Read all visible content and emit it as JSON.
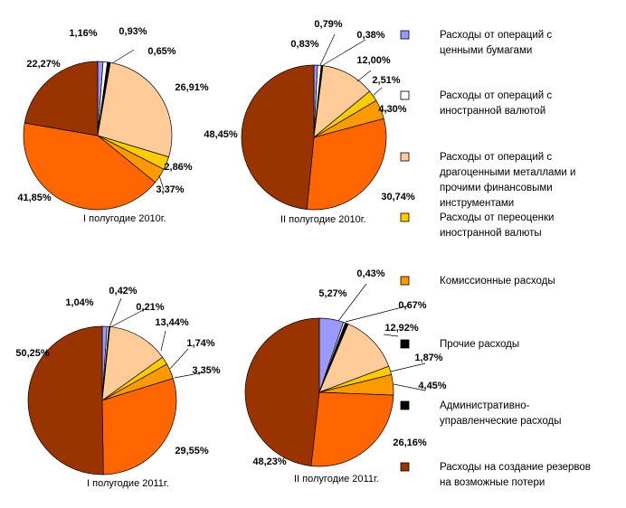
{
  "chart_data": {
    "type": "pie",
    "legend_position": "right",
    "legend": [
      {
        "lines": [
          "Расходы от операций с",
          "ценными бумагами"
        ],
        "color": "#9999ff"
      },
      {
        "lines": [
          "Расходы от операций с",
          "иностранной валютой"
        ],
        "color": "#ffffff"
      },
      {
        "lines": [
          "Расходы от операций с",
          "драгоценными металлами и",
          "прочими финансовыми",
          "инструментами"
        ],
        "color": "#ffcc99"
      },
      {
        "lines": [
          "Расходы от переоценки",
          "иностранной валюты"
        ],
        "color": "#ffcc00"
      },
      {
        "lines": [
          "Комиссионные расходы"
        ],
        "color": "#ff9900"
      },
      {
        "lines": [
          "Прочие расходы"
        ],
        "color": "#000000"
      },
      {
        "lines": [
          "Административно-",
          "управленческие расходы"
        ],
        "color": "#000000"
      },
      {
        "lines": [
          "Расходы на создание резервов",
          "на возможные потери"
        ],
        "color": "#993300"
      }
    ],
    "charts": [
      {
        "title": "I полугодие  2010г.",
        "slices": [
          {
            "value": 1.16,
            "label": "1,16%",
            "color": "#9999ff"
          },
          {
            "value": 0.93,
            "label": "0,93%",
            "color": "#ffffff"
          },
          {
            "value": 0.65,
            "label": "0,65%",
            "color": "#000000"
          },
          {
            "value": 26.91,
            "label": "26,91%",
            "color": "#ffcc99"
          },
          {
            "value": 2.86,
            "label": "2,86%",
            "color": "#ffcc00"
          },
          {
            "value": 3.37,
            "label": "3,37%",
            "color": "#ff9900"
          },
          {
            "value": 41.85,
            "label": "41,85%",
            "color": "#ff6600"
          },
          {
            "value": 22.27,
            "label": "22,27%",
            "color": "#993300"
          }
        ]
      },
      {
        "title": "II полугодие  2010г.",
        "slices": [
          {
            "value": 0.83,
            "label": "0,83%",
            "color": "#9999ff"
          },
          {
            "value": 0.79,
            "label": "0,79%",
            "color": "#ffffff"
          },
          {
            "value": 0.38,
            "label": "0,38%",
            "color": "#000000"
          },
          {
            "value": 12.0,
            "label": "12,00%",
            "color": "#ffcc99"
          },
          {
            "value": 2.51,
            "label": "2,51%",
            "color": "#ffcc00"
          },
          {
            "value": 4.3,
            "label": "4,30%",
            "color": "#ff9900"
          },
          {
            "value": 30.74,
            "label": "30,74%",
            "color": "#ff6600"
          },
          {
            "value": 48.45,
            "label": "48,45%",
            "color": "#993300"
          }
        ]
      },
      {
        "title": "I полугодие  2011г.",
        "slices": [
          {
            "value": 1.04,
            "label": "1,04%",
            "color": "#9999ff"
          },
          {
            "value": 0.42,
            "label": "0,42%",
            "color": "#ffffff"
          },
          {
            "value": 0.21,
            "label": "0,21%",
            "color": "#000000"
          },
          {
            "value": 13.44,
            "label": "13,44%",
            "color": "#ffcc99"
          },
          {
            "value": 1.74,
            "label": "1,74%",
            "color": "#ffcc00"
          },
          {
            "value": 3.35,
            "label": "3,35%",
            "color": "#ff9900"
          },
          {
            "value": 29.55,
            "label": "29,55%",
            "color": "#ff6600"
          },
          {
            "value": 50.25,
            "label": "50,25%",
            "color": "#993300"
          }
        ]
      },
      {
        "title": "II полугодие  2011г.",
        "slices": [
          {
            "value": 5.27,
            "label": "5,27%",
            "color": "#9999ff"
          },
          {
            "value": 0.43,
            "label": "0,43%",
            "color": "#ffffff"
          },
          {
            "value": 0.67,
            "label": "0,67%",
            "color": "#000000"
          },
          {
            "value": 12.92,
            "label": "12,92%",
            "color": "#ffcc99"
          },
          {
            "value": 1.87,
            "label": "1,87%",
            "color": "#ffcc00"
          },
          {
            "value": 4.45,
            "label": "4,45%",
            "color": "#ff9900"
          },
          {
            "value": 26.16,
            "label": "26,16%",
            "color": "#ff6600"
          },
          {
            "value": 48.23,
            "label": "48,23%",
            "color": "#993300"
          }
        ]
      }
    ]
  }
}
